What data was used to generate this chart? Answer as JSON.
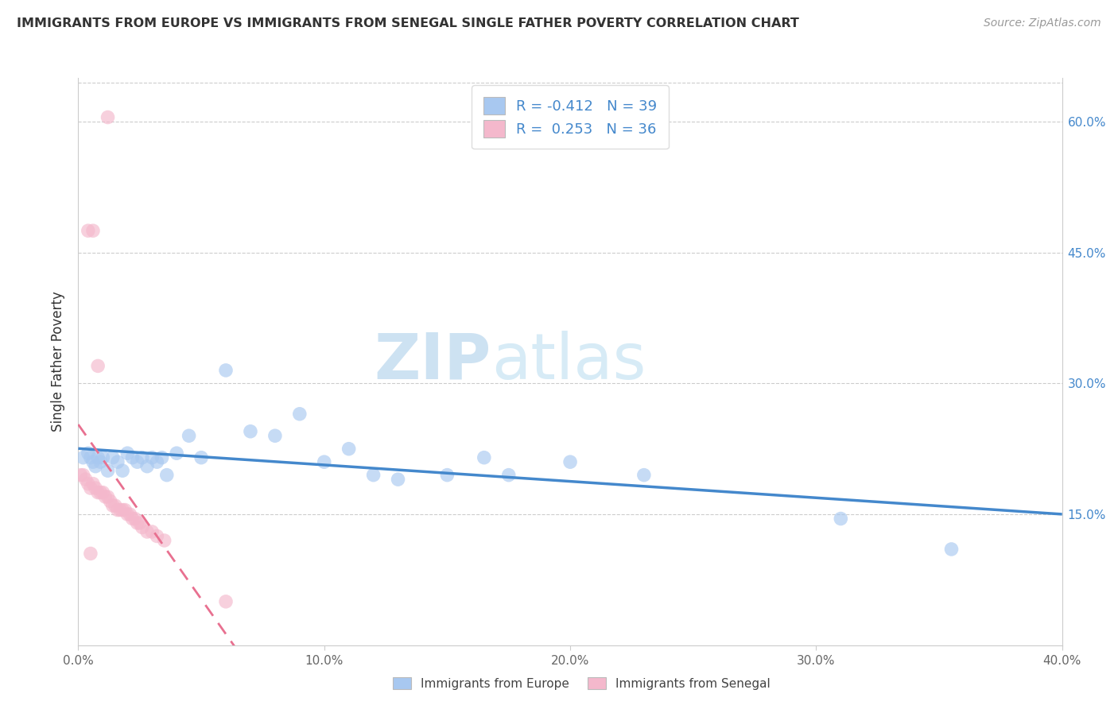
{
  "title": "IMMIGRANTS FROM EUROPE VS IMMIGRANTS FROM SENEGAL SINGLE FATHER POVERTY CORRELATION CHART",
  "source": "Source: ZipAtlas.com",
  "ylabel": "Single Father Poverty",
  "xlim": [
    0.0,
    0.4
  ],
  "ylim": [
    0.0,
    0.65
  ],
  "legend_R1": "-0.412",
  "legend_N1": "39",
  "legend_R2": "0.253",
  "legend_N2": "36",
  "europe_color": "#a8c8f0",
  "senegal_color": "#f4b8cc",
  "europe_line_color": "#4488cc",
  "senegal_line_color": "#e87090",
  "watermark_zip": "ZIP",
  "watermark_atlas": "atlas",
  "watermark_color_zip": "#c8dff0",
  "watermark_color_atlas": "#c8dff0",
  "europe_x": [
    0.002,
    0.004,
    0.005,
    0.006,
    0.007,
    0.008,
    0.009,
    0.01,
    0.012,
    0.014,
    0.016,
    0.018,
    0.02,
    0.022,
    0.024,
    0.026,
    0.028,
    0.03,
    0.032,
    0.034,
    0.036,
    0.04,
    0.045,
    0.05,
    0.06,
    0.07,
    0.08,
    0.09,
    0.1,
    0.11,
    0.12,
    0.13,
    0.15,
    0.165,
    0.175,
    0.2,
    0.23,
    0.31,
    0.355
  ],
  "europe_y": [
    0.215,
    0.22,
    0.215,
    0.21,
    0.205,
    0.215,
    0.21,
    0.215,
    0.2,
    0.215,
    0.21,
    0.2,
    0.22,
    0.215,
    0.21,
    0.215,
    0.205,
    0.215,
    0.21,
    0.215,
    0.195,
    0.22,
    0.24,
    0.215,
    0.315,
    0.245,
    0.24,
    0.265,
    0.21,
    0.225,
    0.195,
    0.19,
    0.195,
    0.215,
    0.195,
    0.21,
    0.195,
    0.145,
    0.11
  ],
  "senegal_x": [
    0.001,
    0.002,
    0.003,
    0.004,
    0.005,
    0.006,
    0.007,
    0.008,
    0.009,
    0.01,
    0.011,
    0.012,
    0.013,
    0.014,
    0.015,
    0.016,
    0.017,
    0.018,
    0.019,
    0.02,
    0.021,
    0.022,
    0.023,
    0.024,
    0.025,
    0.026,
    0.028,
    0.03,
    0.032,
    0.035,
    0.004,
    0.006,
    0.008,
    0.012,
    0.06,
    0.005
  ],
  "senegal_y": [
    0.195,
    0.195,
    0.19,
    0.185,
    0.18,
    0.185,
    0.18,
    0.175,
    0.175,
    0.175,
    0.17,
    0.17,
    0.165,
    0.16,
    0.16,
    0.155,
    0.155,
    0.155,
    0.155,
    0.15,
    0.15,
    0.145,
    0.145,
    0.14,
    0.14,
    0.135,
    0.13,
    0.13,
    0.125,
    0.12,
    0.475,
    0.475,
    0.32,
    0.605,
    0.05,
    0.105
  ]
}
